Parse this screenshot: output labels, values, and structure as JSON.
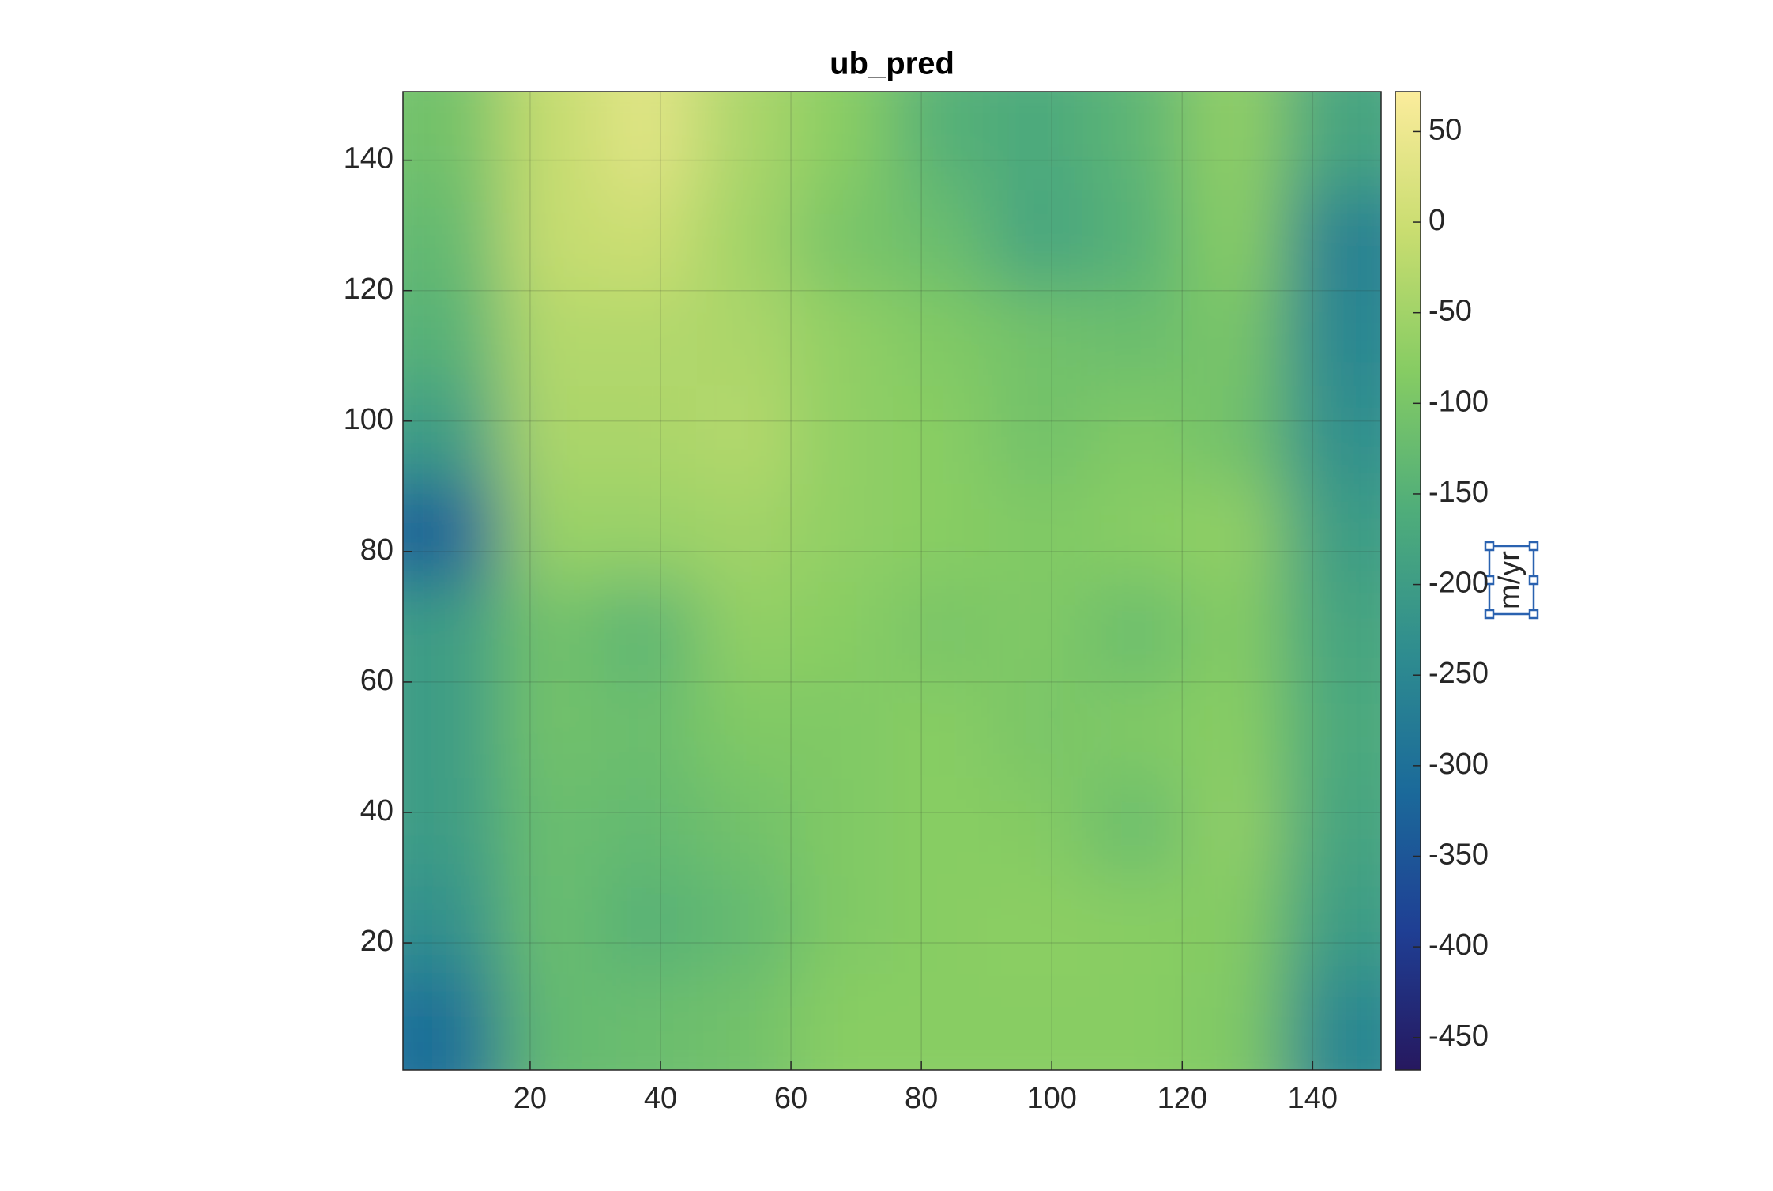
{
  "chart_data": {
    "type": "heatmap",
    "title": "ub_pred",
    "x": [
      8,
      23,
      38,
      53,
      68,
      83,
      98,
      113,
      128,
      143
    ],
    "y": [
      8,
      23,
      38,
      53,
      68,
      83,
      98,
      113,
      128,
      143
    ],
    "values": [
      [
        -300,
        -130,
        -120,
        -110,
        -80,
        -80,
        -80,
        -80,
        -90,
        -250
      ],
      [
        -230,
        -120,
        -150,
        -130,
        -90,
        -80,
        -75,
        -80,
        -85,
        -200
      ],
      [
        -200,
        -120,
        -130,
        -110,
        -90,
        -80,
        -85,
        -120,
        -70,
        -180
      ],
      [
        -200,
        -110,
        -120,
        -90,
        -90,
        -80,
        -100,
        -90,
        -80,
        -170
      ],
      [
        -200,
        -110,
        -140,
        -70,
        -80,
        -100,
        -90,
        -120,
        -85,
        -180
      ],
      [
        -330,
        -60,
        -60,
        -50,
        -70,
        -80,
        -90,
        -80,
        -70,
        -200
      ],
      [
        -200,
        -40,
        -40,
        -30,
        -70,
        -80,
        -110,
        -90,
        -110,
        -230
      ],
      [
        -150,
        -30,
        -30,
        -40,
        -70,
        -90,
        -110,
        -120,
        -100,
        -250
      ],
      [
        -130,
        -10,
        0,
        -50,
        -100,
        -120,
        -180,
        -150,
        -80,
        -260
      ],
      [
        -110,
        -10,
        30,
        -40,
        -80,
        -150,
        -170,
        -140,
        -70,
        -180
      ]
    ],
    "xlim": [
      0.5,
      150.5
    ],
    "ylim": [
      0.5,
      150.5
    ],
    "xticks": [
      20,
      40,
      60,
      80,
      100,
      120,
      140
    ],
    "yticks": [
      20,
      40,
      60,
      80,
      100,
      120,
      140
    ],
    "clim": [
      -468,
      72
    ],
    "cticks": [
      50,
      0,
      -50,
      -100,
      -150,
      -200,
      -250,
      -300,
      -350,
      -400,
      -450
    ],
    "colorbar_label": "m/yr",
    "colormap": [
      "#26185f",
      "#1f3f94",
      "#1b6a9a",
      "#2f8d8f",
      "#4fad7a",
      "#86cc63",
      "#c9dd70",
      "#fbec9c"
    ],
    "grid": true
  }
}
